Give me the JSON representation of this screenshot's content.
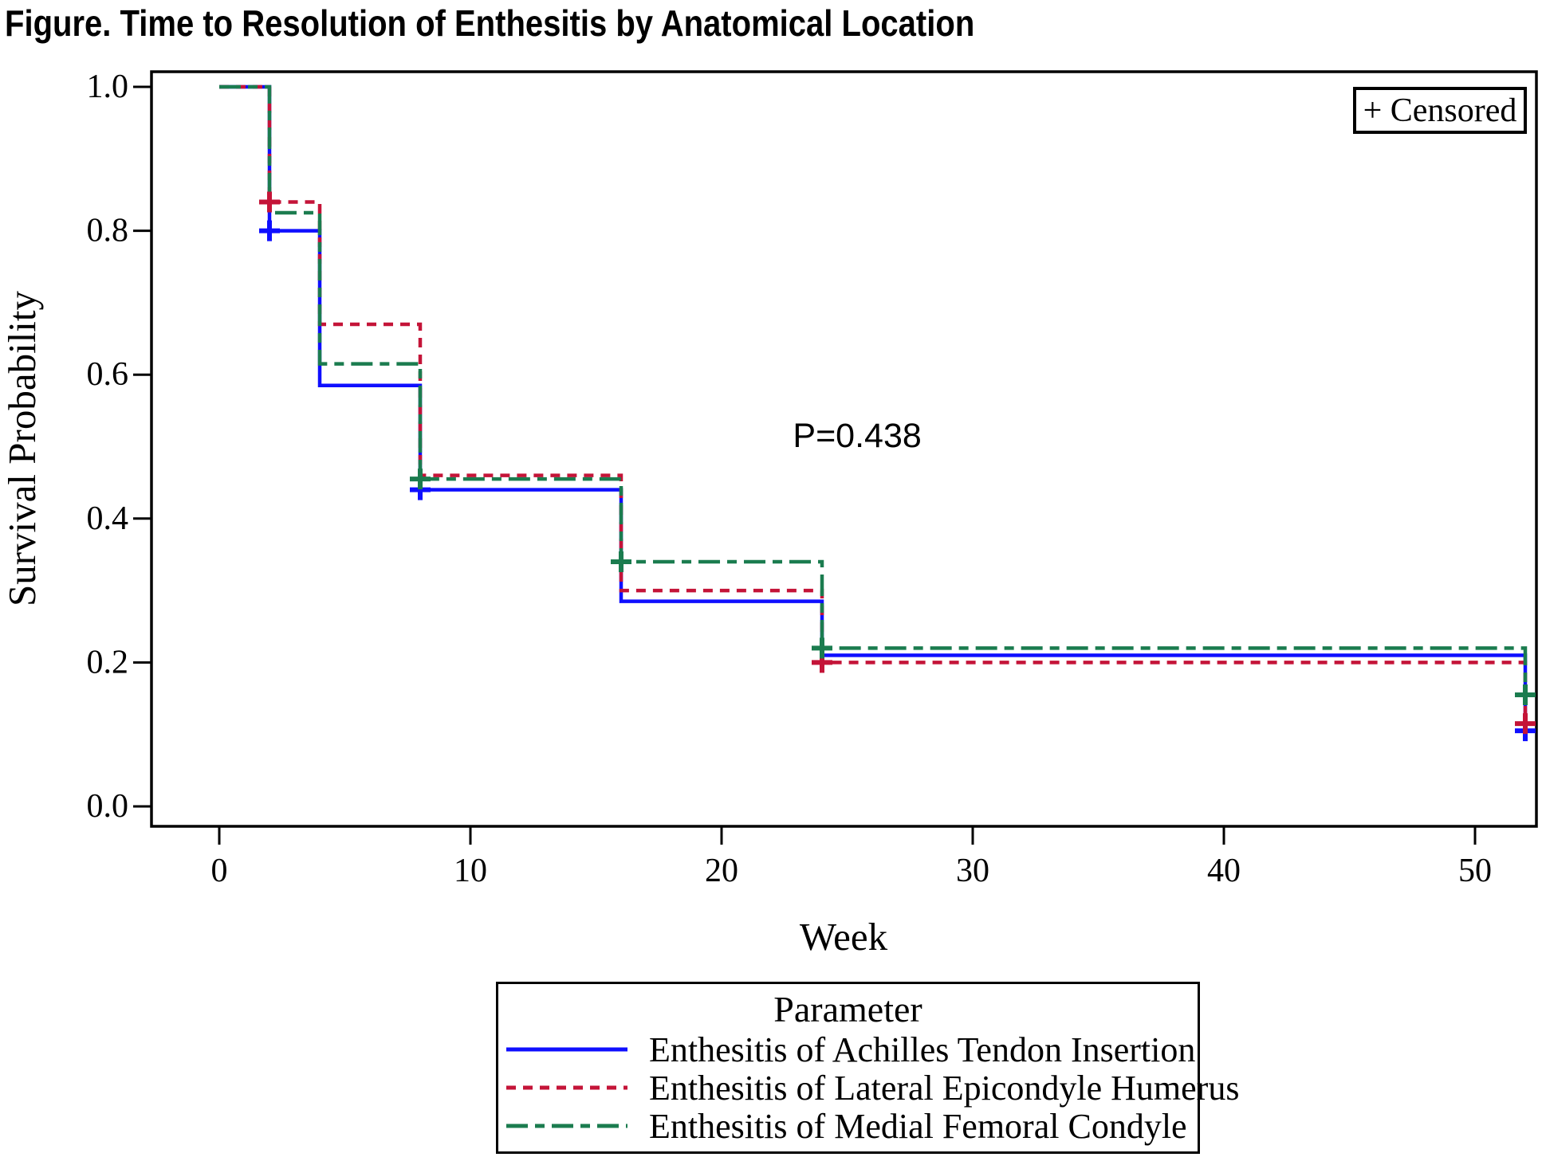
{
  "title": "Figure. Time to Resolution of Enthesitis by Anatomical Location",
  "censored_legend": {
    "text": "+ Censored"
  },
  "annotation": {
    "text": "P=0.438"
  },
  "legend": {
    "title": "Parameter",
    "entries": [
      {
        "label": "Enthesitis of Achilles Tendon Insertion",
        "color": "#0F0FFF",
        "style": "solid"
      },
      {
        "label": "Enthesitis of Lateral Epicondyle Humerus",
        "color": "#C41438",
        "style": "dashed"
      },
      {
        "label": "Enthesitis of Medial Femoral Condyle",
        "color": "#1B7C4F",
        "style": "dashdot"
      }
    ]
  },
  "chart_data": {
    "type": "line",
    "subtype": "kaplan-meier-step",
    "title": "Figure. Time to Resolution of Enthesitis by Anatomical Location",
    "xlabel": "Week",
    "ylabel": "Survival Probability",
    "xticks": [
      0,
      10,
      20,
      30,
      40,
      50
    ],
    "yticks": [
      0,
      0.2,
      0.4,
      0.6,
      0.8,
      1.0
    ],
    "xlim": [
      -2.7,
      52.4
    ],
    "ylim": [
      -0.03,
      1.05
    ],
    "grid": false,
    "legend_position": "bottom",
    "annotation": {
      "text": "P=0.438",
      "x": 25.4,
      "y": 0.515
    },
    "censored_marker": "+",
    "series": [
      {
        "name": "Enthesitis of Achilles Tendon Insertion",
        "color": "#0F0FFF",
        "style": "solid",
        "steps": [
          [
            0,
            1.0
          ],
          [
            2,
            0.8
          ],
          [
            4,
            0.585
          ],
          [
            8,
            0.44
          ],
          [
            16,
            0.285
          ],
          [
            24,
            0.21
          ],
          [
            52,
            0.105
          ]
        ],
        "censored": [
          [
            2,
            0.8
          ],
          [
            8,
            0.44
          ],
          [
            52,
            0.105
          ]
        ]
      },
      {
        "name": "Enthesitis of Lateral Epicondyle Humerus",
        "color": "#C41438",
        "style": "dashed",
        "steps": [
          [
            0,
            1.0
          ],
          [
            2,
            0.84
          ],
          [
            4,
            0.67
          ],
          [
            8,
            0.46
          ],
          [
            16,
            0.3
          ],
          [
            24,
            0.2
          ],
          [
            52,
            0.115
          ]
        ],
        "censored": [
          [
            2,
            0.84
          ],
          [
            24,
            0.2
          ],
          [
            52,
            0.115
          ]
        ]
      },
      {
        "name": "Enthesitis of Medial Femoral Condyle",
        "color": "#1B7C4F",
        "style": "dashdot",
        "steps": [
          [
            0,
            1.0
          ],
          [
            2,
            0.825
          ],
          [
            4,
            0.615
          ],
          [
            8,
            0.455
          ],
          [
            16,
            0.34
          ],
          [
            24,
            0.22
          ],
          [
            52,
            0.155
          ]
        ],
        "censored": [
          [
            8,
            0.455
          ],
          [
            16,
            0.34
          ],
          [
            24,
            0.22
          ],
          [
            52,
            0.155
          ]
        ]
      }
    ]
  }
}
